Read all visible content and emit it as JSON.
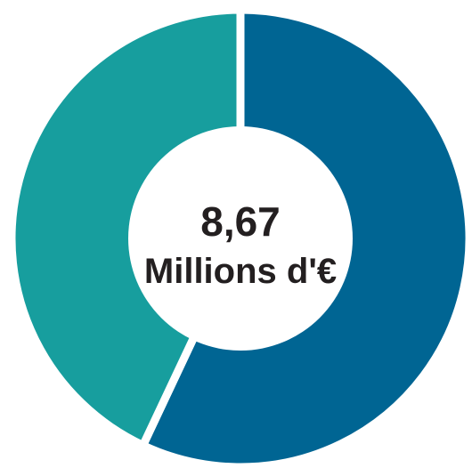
{
  "chart_data": {
    "type": "pie",
    "variant": "donut",
    "center_label": {
      "value": "8,67",
      "unit": "Millions d'€"
    },
    "slices": [
      {
        "value": 57,
        "color": "#006593"
      },
      {
        "value": 43,
        "color": "#179e9e"
      }
    ],
    "start_angle_deg": 0,
    "direction": "clockwise",
    "separator_color": "#ffffff",
    "background_color": "#ffffff"
  }
}
